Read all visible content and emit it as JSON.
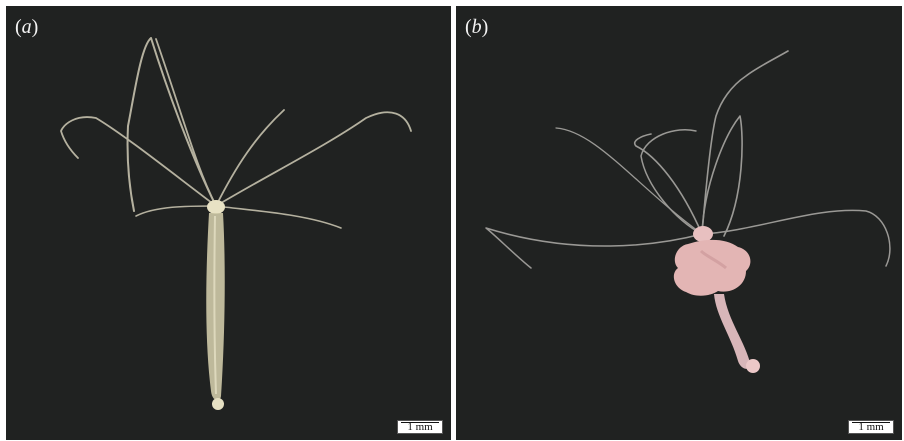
{
  "figure": {
    "panels": [
      {
        "id": "a",
        "label_open": "(",
        "label_letter": "a",
        "label_close": ")",
        "scale_bar": "1 mm"
      },
      {
        "id": "b",
        "label_open": "(",
        "label_letter": "b",
        "label_close": ")",
        "scale_bar": "1 mm"
      }
    ]
  }
}
